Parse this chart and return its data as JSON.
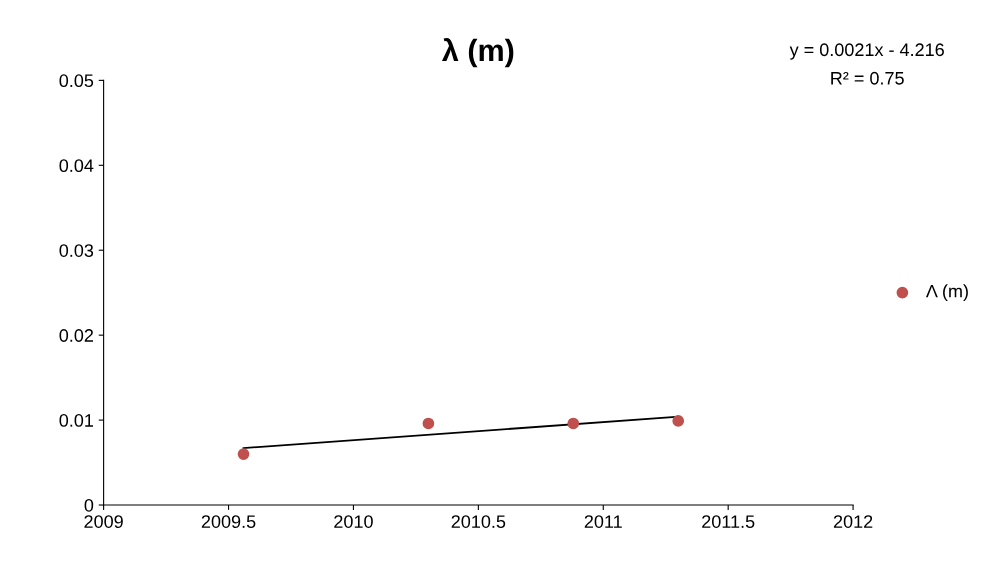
{
  "chart_data": {
    "type": "scatter",
    "title": "λ (m)",
    "xlim": [
      2009,
      2012
    ],
    "xticks": [
      2009,
      2009.5,
      2010,
      2010.5,
      2011,
      2011.5,
      2012
    ],
    "ylim": [
      0,
      0.05
    ],
    "yticks": [
      0,
      0.01,
      0.02,
      0.03,
      0.04,
      0.05
    ],
    "grid": false,
    "legend": "right",
    "series": [
      {
        "name": "Λ (m)",
        "marker": "circle",
        "color": "#c0504d",
        "x": [
          2009.56,
          2010.3,
          2010.88,
          2011.3
        ],
        "values": [
          0.006,
          0.0096,
          0.0096,
          0.0099
        ]
      },
      {
        "type": "line",
        "marker": "none",
        "color": "#000000",
        "x": [
          2009.56,
          2011.3
        ],
        "values": [
          0.0067,
          0.0104
        ]
      }
    ],
    "annotations": [
      "y = 0.0021x - 4.216",
      "R² = 0.75"
    ]
  }
}
